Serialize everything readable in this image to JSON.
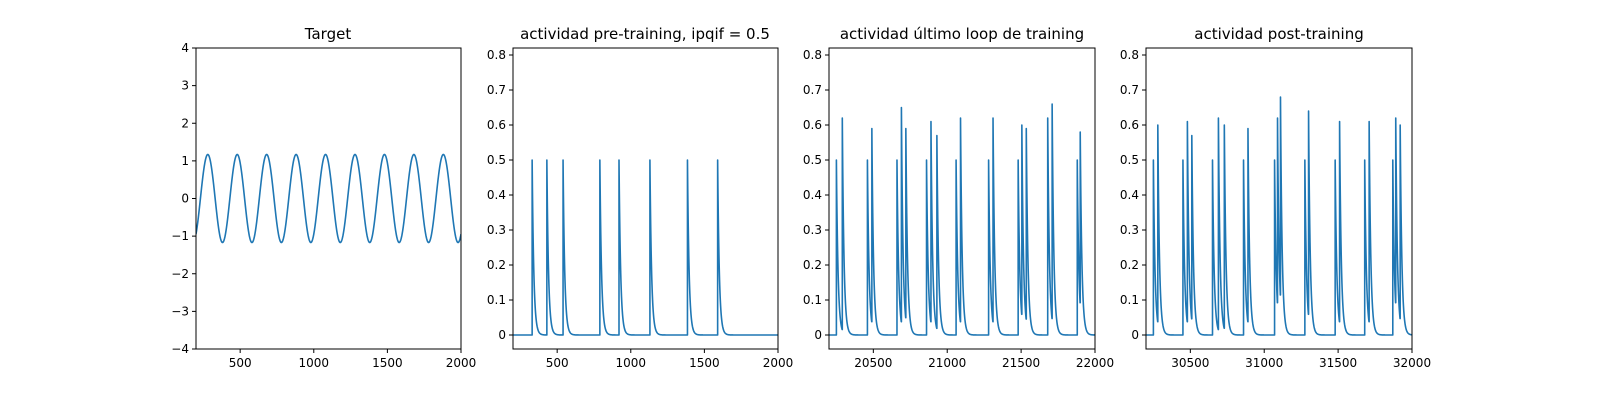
{
  "figure": {
    "background": "#ffffff",
    "line_color": "#1f77b4"
  },
  "chart_data": [
    {
      "type": "line",
      "title": "Target",
      "xlabel": "",
      "ylabel": "",
      "xlim": [
        200,
        2000
      ],
      "ylim": [
        -4,
        4
      ],
      "xticks": [
        500,
        1000,
        1500,
        2000
      ],
      "yticks": [
        -4,
        -3,
        -2,
        -1,
        0,
        1,
        2,
        3,
        4
      ],
      "grid": false,
      "series": [
        {
          "kind": "sine",
          "amplitude": 1.17,
          "period": 200,
          "peak_x": [
            280,
            480,
            680,
            880,
            1080,
            1280,
            1480,
            1680,
            1880
          ],
          "values_description_free": true,
          "x_start": 200,
          "x_end": 2000
        }
      ]
    },
    {
      "type": "line",
      "title": "actividad pre-training, ipqif = 0.5",
      "xlabel": "",
      "ylabel": "",
      "xlim": [
        200,
        2000
      ],
      "ylim": [
        -0.04,
        0.82
      ],
      "xticks": [
        500,
        1000,
        1500,
        2000
      ],
      "yticks": [
        0.0,
        0.1,
        0.2,
        0.3,
        0.4,
        0.5,
        0.6,
        0.7,
        0.8
      ],
      "grid": false,
      "series": [
        {
          "kind": "spikes",
          "spike_x": [
            330,
            430,
            540,
            790,
            920,
            1130,
            1385,
            1590
          ],
          "spike_peak": [
            0.5,
            0.5,
            0.5,
            0.5,
            0.5,
            0.5,
            0.5,
            0.5
          ],
          "baseline": 0.0,
          "x_start": 200,
          "x_end": 2000
        }
      ]
    },
    {
      "type": "line",
      "title": "actividad último loop de training",
      "xlabel": "",
      "ylabel": "",
      "xlim": [
        20200,
        22000
      ],
      "ylim": [
        -0.04,
        0.82
      ],
      "xticks": [
        20500,
        21000,
        21500,
        22000
      ],
      "yticks": [
        0.0,
        0.1,
        0.2,
        0.3,
        0.4,
        0.5,
        0.6,
        0.7,
        0.8
      ],
      "grid": false,
      "series": [
        {
          "kind": "spikes",
          "spike_x": [
            20250,
            20290,
            20460,
            20490,
            20660,
            20690,
            20720,
            20860,
            20890,
            20930,
            21060,
            21090,
            21280,
            21310,
            21480,
            21505,
            21535,
            21680,
            21710,
            21880,
            21900
          ],
          "spike_peak": [
            0.5,
            0.62,
            0.5,
            0.59,
            0.5,
            0.65,
            0.59,
            0.5,
            0.61,
            0.57,
            0.5,
            0.62,
            0.5,
            0.62,
            0.5,
            0.6,
            0.59,
            0.62,
            0.66,
            0.5,
            0.58
          ],
          "baseline": 0.0,
          "x_start": 20200,
          "x_end": 22000
        }
      ]
    },
    {
      "type": "line",
      "title": "actividad post-training",
      "xlabel": "",
      "ylabel": "",
      "xlim": [
        30200,
        32000
      ],
      "ylim": [
        -0.04,
        0.82
      ],
      "xticks": [
        30500,
        31000,
        31500,
        32000
      ],
      "yticks": [
        0.0,
        0.1,
        0.2,
        0.3,
        0.4,
        0.5,
        0.6,
        0.7,
        0.8
      ],
      "grid": false,
      "series": [
        {
          "kind": "spikes",
          "spike_x": [
            30250,
            30280,
            30450,
            30480,
            30510,
            30650,
            30690,
            30730,
            30860,
            30890,
            31070,
            31090,
            31110,
            31275,
            31300,
            31480,
            31510,
            31680,
            31710,
            31870,
            31890,
            31920
          ],
          "spike_peak": [
            0.5,
            0.6,
            0.5,
            0.61,
            0.57,
            0.5,
            0.62,
            0.6,
            0.5,
            0.59,
            0.5,
            0.62,
            0.68,
            0.5,
            0.64,
            0.5,
            0.61,
            0.5,
            0.61,
            0.5,
            0.62,
            0.6
          ],
          "baseline": 0.0,
          "x_start": 30200,
          "x_end": 32000
        }
      ]
    }
  ]
}
